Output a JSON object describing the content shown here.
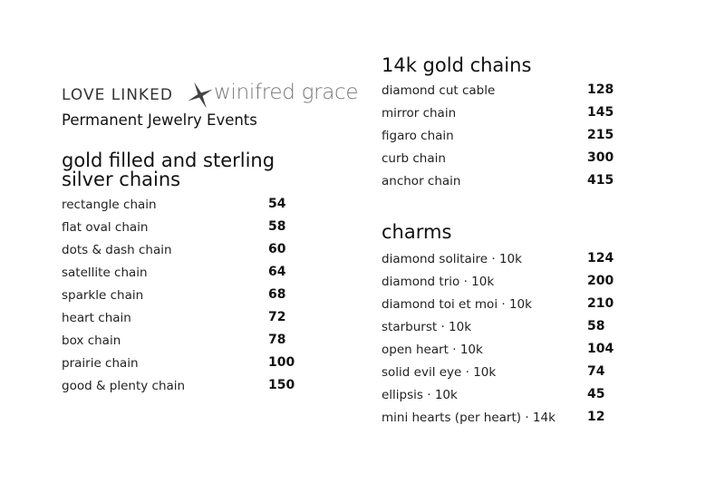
{
  "header": {
    "brand": "LOVE LINKED",
    "partner": "winifred grace",
    "subtitle": "Permanent Jewelry Events"
  },
  "sections": [
    {
      "title": "gold filled and sterling silver chains",
      "items": [
        {
          "name": "rectangle chain",
          "price": 54
        },
        {
          "name": "flat oval chain",
          "price": 58
        },
        {
          "name": "dots & dash chain",
          "price": 60
        },
        {
          "name": "satellite chain",
          "price": 64
        },
        {
          "name": "sparkle chain",
          "price": 68
        },
        {
          "name": "heart chain",
          "price": 72
        },
        {
          "name": "box chain",
          "price": 78
        },
        {
          "name": "prairie chain",
          "price": 100
        },
        {
          "name": "good & plenty chain",
          "price": 150
        }
      ]
    },
    {
      "title": "14k gold chains",
      "items": [
        {
          "name": "diamond cut cable",
          "price": 128
        },
        {
          "name": "mirror chain",
          "price": 145
        },
        {
          "name": "figaro chain",
          "price": 215
        },
        {
          "name": "curb chain",
          "price": 300
        },
        {
          "name": "anchor chain",
          "price": 415
        }
      ]
    },
    {
      "title": "charms",
      "items": [
        {
          "name": "diamond solitaire · 10k",
          "price": 124
        },
        {
          "name": "diamond trio · 10k",
          "price": 200
        },
        {
          "name": "diamond toi et moi · 10k",
          "price": 210
        },
        {
          "name": "starburst · 10k",
          "price": 58
        },
        {
          "name": "open heart · 10k",
          "price": 104
        },
        {
          "name": "solid evil eye · 10k",
          "price": 74
        },
        {
          "name": "ellipsis · 10k",
          "price": 45
        },
        {
          "name": "mini hearts (per heart) · 14k",
          "price": 12
        }
      ]
    }
  ]
}
